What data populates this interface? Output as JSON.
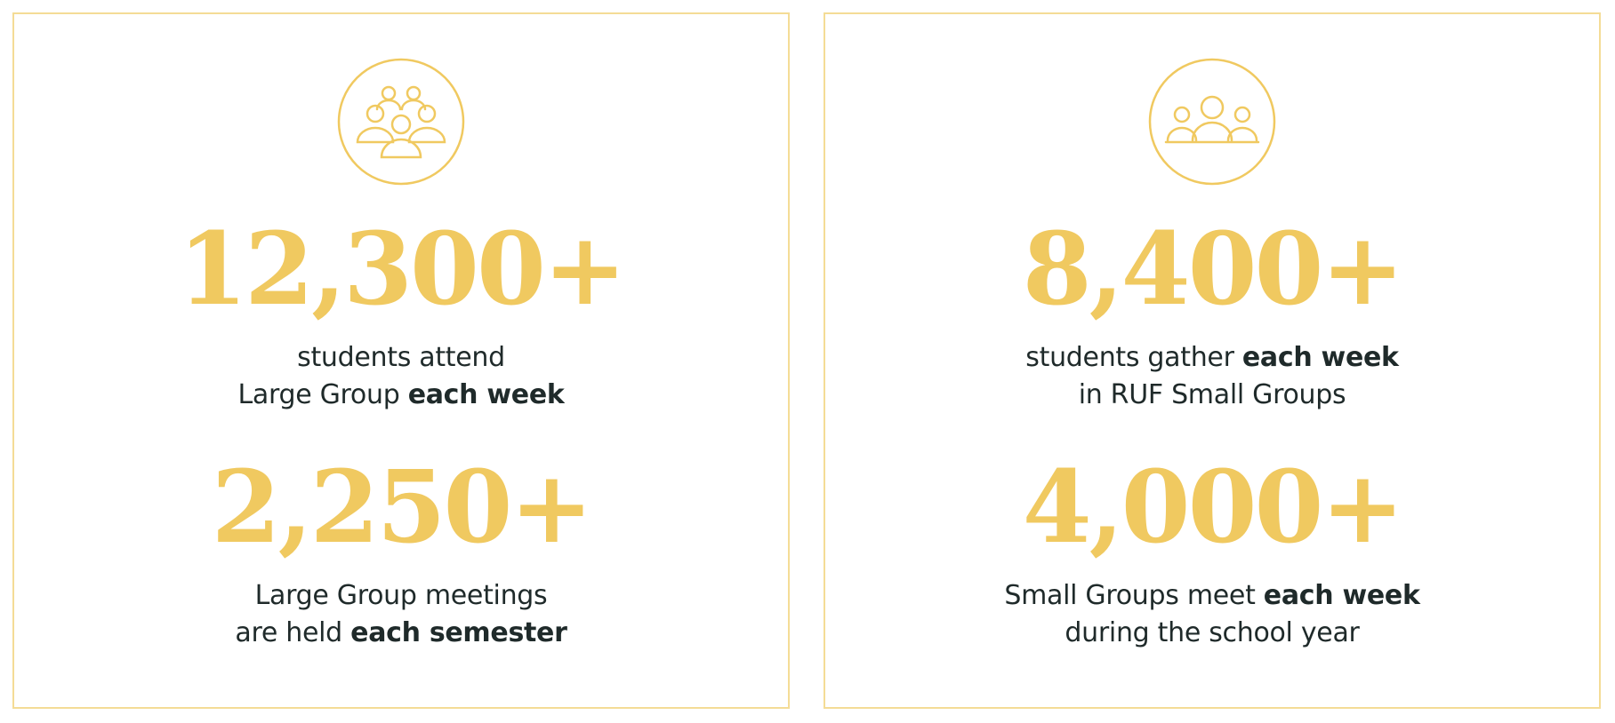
{
  "panels": [
    {
      "icon": "large-group-people-icon",
      "stats": [
        {
          "number": "12,300+",
          "line1": [
            {
              "text": "students attend",
              "bold": false
            }
          ],
          "line2": [
            {
              "text": "Large Group ",
              "bold": false
            },
            {
              "text": "each week",
              "bold": true
            }
          ]
        },
        {
          "number": "2,250+",
          "line1": [
            {
              "text": "Large Group meetings",
              "bold": false
            }
          ],
          "line2": [
            {
              "text": "are held ",
              "bold": false
            },
            {
              "text": "each semester",
              "bold": true
            }
          ]
        }
      ]
    },
    {
      "icon": "small-group-people-icon",
      "stats": [
        {
          "number": "8,400+",
          "line1": [
            {
              "text": "students gather ",
              "bold": false
            },
            {
              "text": "each week",
              "bold": true
            }
          ],
          "line2": [
            {
              "text": "in RUF Small Groups",
              "bold": false
            }
          ]
        },
        {
          "number": "4,000+",
          "line1": [
            {
              "text": "Small Groups meet ",
              "bold": false
            },
            {
              "text": "each week",
              "bold": true
            }
          ],
          "line2": [
            {
              "text": "during the school year",
              "bold": false
            }
          ]
        }
      ]
    }
  ],
  "colors": {
    "accent": "#f0c960",
    "border": "#f4dc96",
    "text": "#1f2a2a"
  }
}
